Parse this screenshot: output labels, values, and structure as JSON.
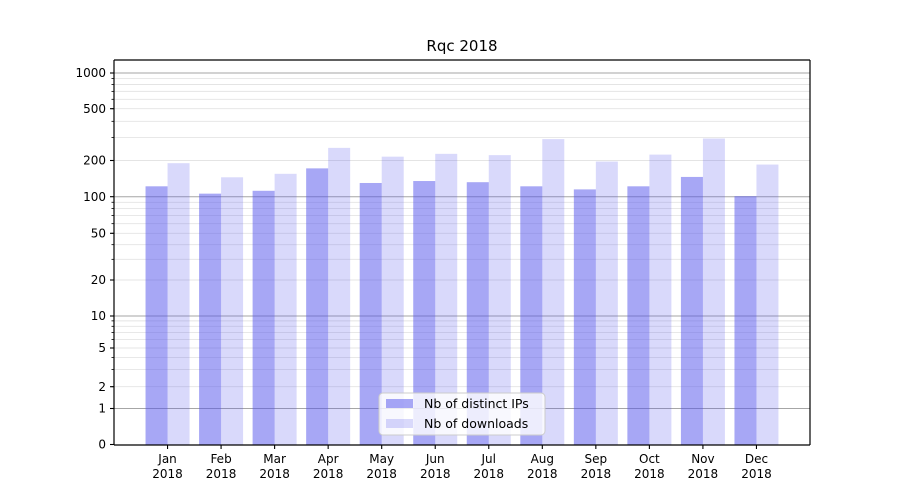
{
  "chart_data": {
    "type": "bar",
    "title": "Rqc 2018",
    "categories": [
      "Jan 2018",
      "Feb 2018",
      "Mar 2018",
      "Apr 2018",
      "May 2018",
      "Jun 2018",
      "Jul 2018",
      "Aug 2018",
      "Sep 2018",
      "Oct 2018",
      "Nov 2018",
      "Dec 2018"
    ],
    "series": [
      {
        "name": "Nb of distinct IPs",
        "opacity": 0.5,
        "values": [
          122,
          106,
          112,
          172,
          130,
          135,
          132,
          122,
          115,
          122,
          146,
          101
        ]
      },
      {
        "name": "Nb of downloads",
        "opacity": 0.22,
        "values": [
          190,
          145,
          155,
          250,
          214,
          225,
          220,
          292,
          196,
          222,
          295,
          185
        ]
      }
    ],
    "xlabel": "",
    "ylabel": "",
    "y_axis": {
      "scale": "symlog",
      "tick_labels": [
        "0",
        "1",
        "2",
        "5",
        "10",
        "20",
        "50",
        "100",
        "200",
        "500",
        "1000"
      ],
      "tick_values": [
        0,
        1,
        2,
        5,
        10,
        20,
        50,
        100,
        200,
        500,
        1000
      ],
      "major_grid_values": [
        1,
        10,
        100,
        1000
      ],
      "ylim": [
        0,
        1300
      ]
    },
    "grid": true,
    "legend": {
      "position": "lower center",
      "entries": [
        "Nb of distinct IPs",
        "Nb of downloads"
      ]
    },
    "colors": {
      "bar_base": "#5050eb",
      "dark_bar_apparent": "#a7a7f7",
      "light_bar_apparent": "#d8d8fb",
      "major_grid": "#a6a6a6",
      "minor_grid": "#e4e4e4",
      "spine": "#000000",
      "legend_border": "#cccccc"
    }
  }
}
